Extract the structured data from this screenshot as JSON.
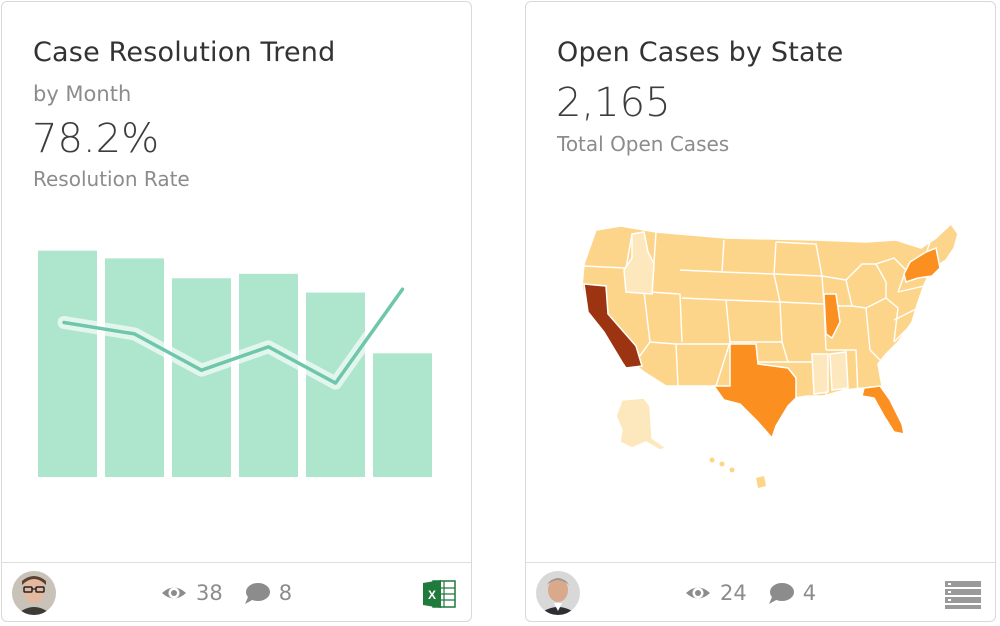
{
  "cards": [
    {
      "title": "Case Resolution Trend",
      "subtitle": "by Month",
      "metric": "78.2%",
      "metric_label": "Resolution Rate",
      "views": "38",
      "comments": "8",
      "source_icon": "excel-icon"
    },
    {
      "title": "Open Cases by State",
      "metric": "2,165",
      "metric_label": "Total Open Cases",
      "views": "24",
      "comments": "4",
      "source_icon": "database-icon"
    }
  ],
  "colors": {
    "bar": "#aee5cd",
    "line": "#6fc7ab",
    "map_base": "#fdd58a",
    "map_light": "#fde7bd",
    "map_orange": "#fb8f20",
    "map_dark": "#9c3412",
    "excel_green": "#1f7a3c",
    "text_gray": "#8c8c8c"
  },
  "chart_data": {
    "type": "bar",
    "categories": [
      "",
      "",
      "",
      "",
      "",
      ""
    ],
    "values": [
      205,
      198,
      180,
      184,
      167,
      112
    ],
    "line_values": [
      75.4,
      73.9,
      69.1,
      72.2,
      67.4,
      79.8
    ],
    "ylim": [
      0,
      240
    ],
    "line_ylim": [
      55,
      90
    ],
    "title": "",
    "xlabel": "",
    "ylabel": "",
    "grid": false,
    "legend": "none"
  },
  "map_data": {
    "highlight_dark": [
      "California"
    ],
    "highlight_orange": [
      "Texas",
      "New York",
      "Florida",
      "Illinois"
    ],
    "highlight_light": [
      "Idaho",
      "Alaska",
      "Mississippi",
      "Alabama"
    ]
  }
}
